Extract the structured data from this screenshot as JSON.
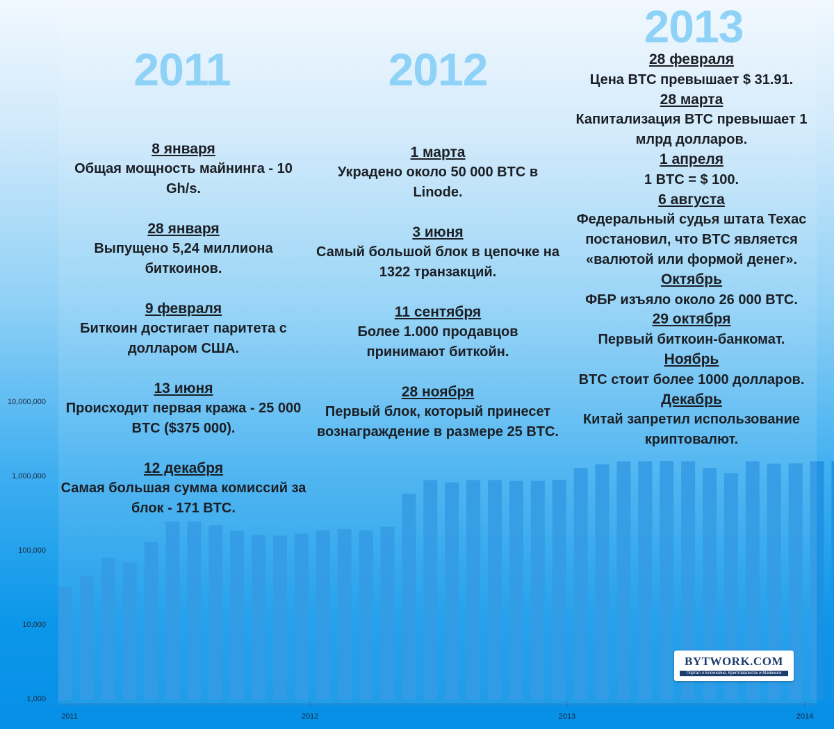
{
  "years": [
    {
      "label": "2011"
    },
    {
      "label": "2012"
    },
    {
      "label": "2013"
    }
  ],
  "columns": [
    {
      "events": [
        {
          "date": "8 января",
          "text": "Общая мощность майнинга - 10 Gh/s."
        },
        {
          "date": "28 января",
          "text": "Выпущено 5,24 миллиона биткоинов."
        },
        {
          "date": "9 февраля",
          "text": "Биткоин достигает паритета с долларом США."
        },
        {
          "date": "13 июня",
          "text": "Происходит первая кража - 25 000 BTC ($375 000)."
        },
        {
          "date": "12 декабря",
          "text": "Самая большая сумма комиссий за блок - 171 BTC."
        }
      ]
    },
    {
      "events": [
        {
          "date": "1 марта",
          "text": "Украдено около 50 000 BTC в Linode."
        },
        {
          "date": "3 июня",
          "text": "Самый большой блок в цепочке на 1322 транзакций."
        },
        {
          "date": "11 сентября",
          "text": "Более 1.000 продавцов принимают биткойн."
        },
        {
          "date": "28 ноября",
          "text": "Первый блок, который принесет вознаграждение в размере 25 BTC."
        }
      ]
    },
    {
      "events": [
        {
          "date": "28 февраля",
          "text": "Цена BTC превышает $ 31.91."
        },
        {
          "date": "28 марта",
          "text": "Капитализация BTC превышает 1 млрд долларов."
        },
        {
          "date": "1 апреля",
          "text": "1 BTC = $ 100."
        },
        {
          "date": "6 августа",
          "text": "Федеральный судья штата Техас постановил, что BTC является «валютой или формой денег»."
        },
        {
          "date": "Октябрь",
          "text": "ФБР изъяло около 26 000 BTC."
        },
        {
          "date": "29 октября",
          "text": "Первый биткоин-банкомат."
        },
        {
          "date": "Ноябрь",
          "text": "BTC стоит более 1000 долларов."
        },
        {
          "date": "Декабрь",
          "text": "Китай запретил использование криптовалют."
        }
      ]
    }
  ],
  "logo": {
    "main": "BYTWORK.COM",
    "sub": "Портал о Блокчейне, Криптовалютах и Майнинге"
  },
  "chart_data": {
    "type": "bar",
    "yscale": "log",
    "ylim": [
      1000,
      10000000
    ],
    "yticks": [
      {
        "value": 1000,
        "label": "1,000"
      },
      {
        "value": 10000,
        "label": "10,000"
      },
      {
        "value": 100000,
        "label": "100,000"
      },
      {
        "value": 1000000,
        "label": "1,000,000"
      },
      {
        "value": 10000000,
        "label": "10,000,000"
      }
    ],
    "xticks": [
      "2011",
      "2012",
      "2013",
      "2014"
    ],
    "values": [
      32000,
      44000,
      78000,
      68000,
      128000,
      240000,
      240000,
      215000,
      180000,
      158000,
      155000,
      165000,
      183000,
      190000,
      183000,
      205000,
      570000,
      870000,
      810000,
      870000,
      870000,
      850000,
      850000,
      880000,
      1260000,
      1420000,
      1550000,
      1560000,
      1570000,
      1560000,
      1260000,
      1080000,
      1560000,
      1450000,
      1460000,
      1560000,
      1570000
    ],
    "bar_color": "#1d8fe1",
    "grid": false
  }
}
